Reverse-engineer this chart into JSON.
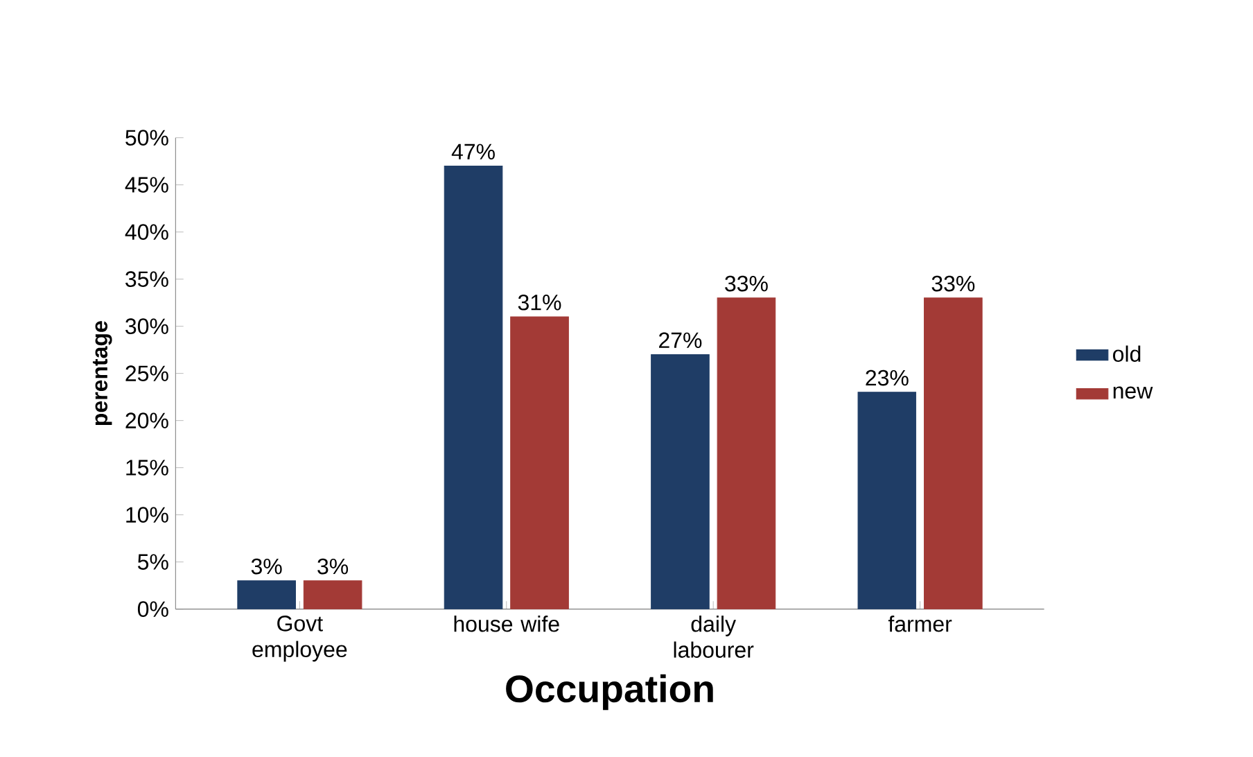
{
  "chart_data": {
    "type": "bar",
    "xlabel": "Occupation",
    "ylabel": "perentage",
    "categories": [
      "Govt employee",
      "house wife",
      "daily labourer",
      "farmer"
    ],
    "series": [
      {
        "name": "old",
        "color": "#1f3d66",
        "values": [
          3,
          47,
          27,
          23
        ],
        "value_labels": [
          "3%",
          "47%",
          "27%",
          "23%"
        ]
      },
      {
        "name": "new",
        "color": "#a33a36",
        "values": [
          3,
          31,
          33,
          33
        ],
        "value_labels": [
          "3%",
          "31%",
          "33%",
          "33%"
        ]
      }
    ],
    "ylim": [
      0,
      50
    ],
    "yticks": [
      {
        "value": 0,
        "label": "0%"
      },
      {
        "value": 5,
        "label": "5%"
      },
      {
        "value": 10,
        "label": "10%"
      },
      {
        "value": 15,
        "label": "15%"
      },
      {
        "value": 20,
        "label": "20%"
      },
      {
        "value": 25,
        "label": "25%"
      },
      {
        "value": 30,
        "label": "30%"
      },
      {
        "value": 35,
        "label": "35%"
      },
      {
        "value": 40,
        "label": "40%"
      },
      {
        "value": 45,
        "label": "45%"
      },
      {
        "value": 50,
        "label": "50%"
      }
    ],
    "legend": "right",
    "grid": false
  }
}
